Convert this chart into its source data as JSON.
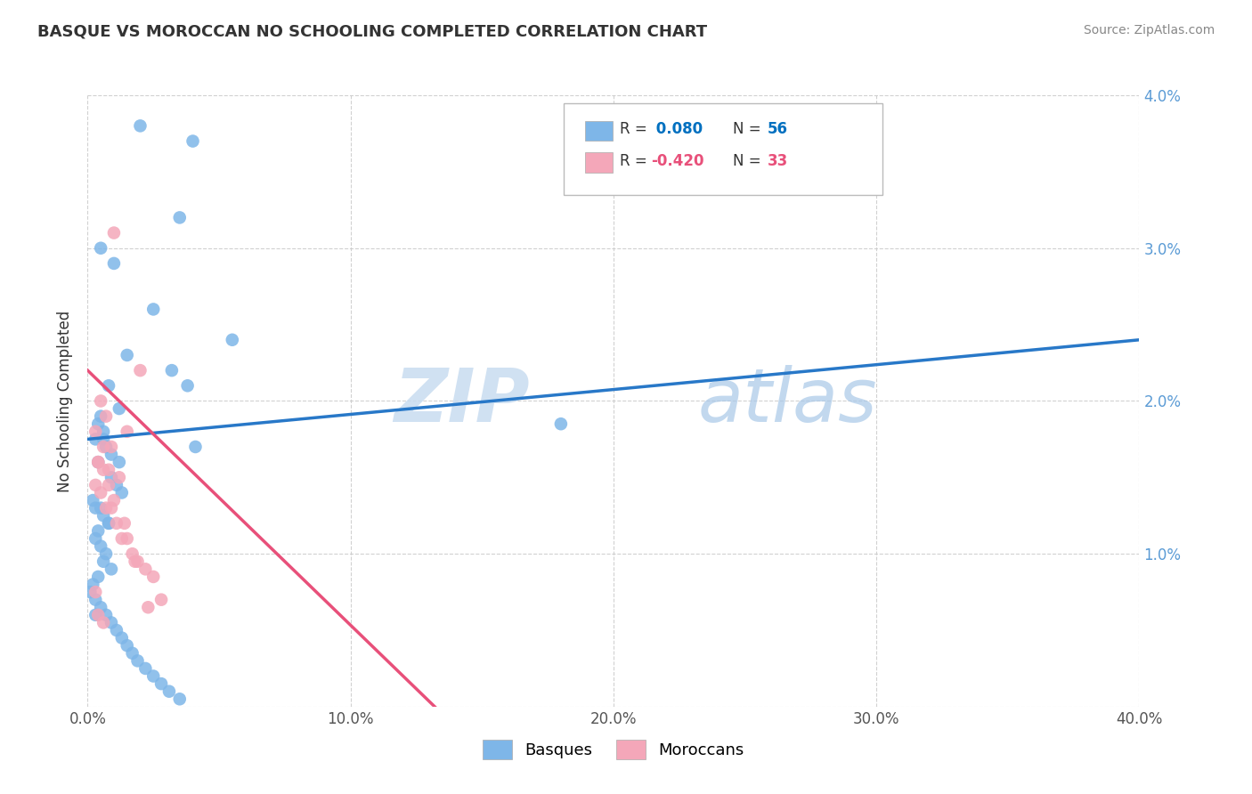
{
  "title": "BASQUE VS MOROCCAN NO SCHOOLING COMPLETED CORRELATION CHART",
  "source": "Source: ZipAtlas.com",
  "xlabel_basques": "Basques",
  "xlabel_moroccans": "Moroccans",
  "ylabel": "No Schooling Completed",
  "xlim": [
    0.0,
    0.4
  ],
  "ylim": [
    0.0,
    0.04
  ],
  "xticks": [
    0.0,
    0.1,
    0.2,
    0.3,
    0.4
  ],
  "xtick_labels": [
    "0.0%",
    "10.0%",
    "20.0%",
    "30.0%",
    "40.0%"
  ],
  "yticks": [
    0.0,
    0.01,
    0.02,
    0.03,
    0.04
  ],
  "ytick_labels": [
    "",
    "1.0%",
    "2.0%",
    "3.0%",
    "4.0%"
  ],
  "blue_R": 0.08,
  "blue_N": 56,
  "pink_R": -0.42,
  "pink_N": 33,
  "blue_color": "#7EB6E8",
  "pink_color": "#F4A7B9",
  "blue_line_color": "#2878C8",
  "pink_line_color": "#E8507A",
  "watermark_zip": "ZIP",
  "watermark_atlas": "atlas",
  "background_color": "#FFFFFF",
  "legend_color_blue": "#0070C0",
  "legend_color_pink": "#E8507A",
  "blue_scatter_x": [
    0.02,
    0.04,
    0.035,
    0.01,
    0.025,
    0.055,
    0.005,
    0.015,
    0.032,
    0.008,
    0.012,
    0.005,
    0.006,
    0.003,
    0.007,
    0.004,
    0.009,
    0.011,
    0.013,
    0.002,
    0.003,
    0.006,
    0.008,
    0.004,
    0.003,
    0.005,
    0.007,
    0.006,
    0.009,
    0.004,
    0.002,
    0.001,
    0.003,
    0.005,
    0.007,
    0.009,
    0.011,
    0.013,
    0.015,
    0.017,
    0.019,
    0.022,
    0.025,
    0.028,
    0.031,
    0.035,
    0.038,
    0.041,
    0.005,
    0.008,
    0.012,
    0.18,
    0.006,
    0.009,
    0.003,
    0.004
  ],
  "blue_scatter_y": [
    0.038,
    0.037,
    0.032,
    0.029,
    0.026,
    0.024,
    0.03,
    0.023,
    0.022,
    0.021,
    0.0195,
    0.019,
    0.018,
    0.0175,
    0.017,
    0.016,
    0.015,
    0.0145,
    0.014,
    0.0135,
    0.013,
    0.0125,
    0.012,
    0.0115,
    0.011,
    0.0105,
    0.01,
    0.0095,
    0.009,
    0.0085,
    0.008,
    0.0075,
    0.007,
    0.0065,
    0.006,
    0.0055,
    0.005,
    0.0045,
    0.004,
    0.0035,
    0.003,
    0.0025,
    0.002,
    0.0015,
    0.001,
    0.0005,
    0.021,
    0.017,
    0.013,
    0.012,
    0.016,
    0.0185,
    0.0175,
    0.0165,
    0.006,
    0.0185
  ],
  "pink_scatter_x": [
    0.01,
    0.02,
    0.005,
    0.007,
    0.003,
    0.015,
    0.009,
    0.006,
    0.004,
    0.008,
    0.012,
    0.003,
    0.005,
    0.007,
    0.009,
    0.011,
    0.013,
    0.015,
    0.017,
    0.019,
    0.022,
    0.025,
    0.028,
    0.003,
    0.004,
    0.006,
    0.008,
    0.01,
    0.014,
    0.018,
    0.023,
    0.004,
    0.006
  ],
  "pink_scatter_y": [
    0.031,
    0.022,
    0.02,
    0.019,
    0.018,
    0.018,
    0.017,
    0.017,
    0.016,
    0.0155,
    0.015,
    0.0145,
    0.014,
    0.013,
    0.013,
    0.012,
    0.011,
    0.011,
    0.01,
    0.0095,
    0.009,
    0.0085,
    0.007,
    0.0075,
    0.016,
    0.0155,
    0.0145,
    0.0135,
    0.012,
    0.0095,
    0.0065,
    0.006,
    0.0055
  ],
  "blue_trend_x": [
    0.0,
    0.4
  ],
  "blue_trend_y": [
    0.0175,
    0.024
  ],
  "pink_trend_x": [
    0.0,
    0.135
  ],
  "pink_trend_y": [
    0.022,
    -0.0005
  ]
}
